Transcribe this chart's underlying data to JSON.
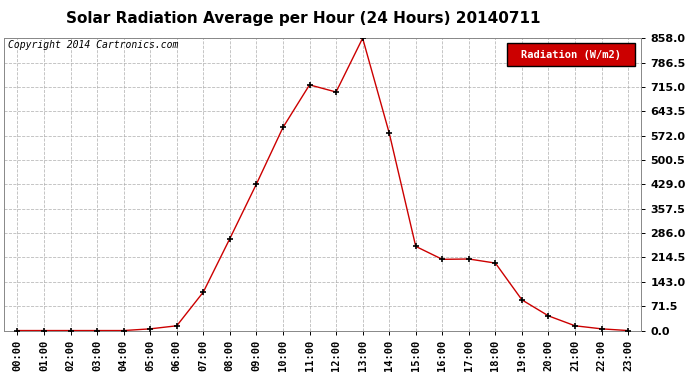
{
  "title": "Solar Radiation Average per Hour (24 Hours) 20140711",
  "copyright": "Copyright 2014 Cartronics.com",
  "legend_label": "Radiation (W/m2)",
  "hours": [
    "00:00",
    "01:00",
    "02:00",
    "03:00",
    "04:00",
    "05:00",
    "06:00",
    "07:00",
    "08:00",
    "09:00",
    "10:00",
    "11:00",
    "12:00",
    "13:00",
    "14:00",
    "15:00",
    "16:00",
    "17:00",
    "18:00",
    "19:00",
    "20:00",
    "21:00",
    "22:00",
    "23:00"
  ],
  "values": [
    0.0,
    0.0,
    0.0,
    0.0,
    0.0,
    5.0,
    14.0,
    113.0,
    270.0,
    430.0,
    596.0,
    721.0,
    700.0,
    858.0,
    580.0,
    247.0,
    209.0,
    210.0,
    198.0,
    90.0,
    43.0,
    14.0,
    5.0,
    0.0
  ],
  "line_color": "#cc0000",
  "marker": "+",
  "marker_color": "#000000",
  "background_color": "#ffffff",
  "grid_color": "#aaaaaa",
  "ylim": [
    0.0,
    858.0
  ],
  "yticks": [
    0.0,
    71.5,
    143.0,
    214.5,
    286.0,
    357.5,
    429.0,
    500.5,
    572.0,
    643.5,
    715.0,
    786.5,
    858.0
  ],
  "title_fontsize": 11,
  "copyright_fontsize": 7,
  "legend_bg": "#cc0000",
  "legend_text_color": "#ffffff",
  "tick_fontsize": 7.5,
  "ytick_fontsize": 8
}
